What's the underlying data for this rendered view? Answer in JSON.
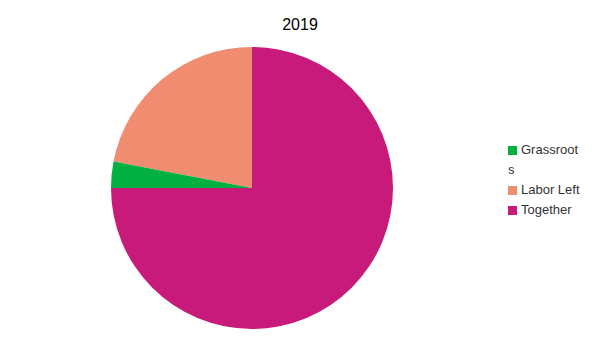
{
  "chart_data": {
    "type": "pie",
    "title": "2019",
    "categories": [
      "Labor Left",
      "Grassroots",
      "Together"
    ],
    "values": [
      22,
      3,
      75
    ],
    "colors": [
      "#f08c70",
      "#00b040",
      "#c71a7a"
    ],
    "legend": "right"
  }
}
